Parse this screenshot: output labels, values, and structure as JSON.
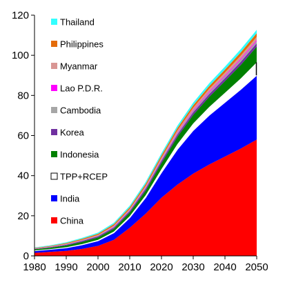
{
  "chart_data": {
    "type": "area",
    "stacked": true,
    "title": "",
    "xlabel": "",
    "ylabel": "",
    "xlim": [
      1980,
      2050
    ],
    "ylim": [
      0,
      120
    ],
    "x_ticks": [
      1980,
      1990,
      2000,
      2010,
      2020,
      2030,
      2040,
      2050
    ],
    "y_ticks": [
      0,
      20,
      40,
      60,
      80,
      100,
      120
    ],
    "grid": false,
    "legend_placement": "top-left",
    "legend_order": [
      "Thailand",
      "Philippines",
      "Myanmar",
      "Lao P.D.R.",
      "Cambodia",
      "Korea",
      "Indonesia",
      "TPP+RCEP",
      "India",
      "China"
    ],
    "x": [
      1980,
      1985,
      1990,
      1995,
      2000,
      2005,
      2010,
      2015,
      2020,
      2025,
      2030,
      2035,
      2040,
      2045,
      2050
    ],
    "series": [
      {
        "name": "China",
        "color": "#ff0000",
        "values": [
          1.5,
          2.0,
          2.5,
          3.5,
          5.0,
          8.0,
          14.0,
          21.0,
          29.0,
          35.5,
          41.0,
          45.5,
          49.5,
          53.5,
          58.0
        ]
      },
      {
        "name": "India",
        "color": "#0000ff",
        "values": [
          1.0,
          1.2,
          1.5,
          2.0,
          2.5,
          3.5,
          5.0,
          8.0,
          12.5,
          17.5,
          21.5,
          24.5,
          27.0,
          29.5,
          32.0
        ]
      },
      {
        "name": "TPP+RCEP",
        "color": "#ffffff",
        "values": [
          0.2,
          0.2,
          0.3,
          0.4,
          0.5,
          0.6,
          0.8,
          1.2,
          1.8,
          2.7,
          3.5,
          4.2,
          4.8,
          5.5,
          6.5
        ]
      },
      {
        "name": "Indonesia",
        "color": "#008000",
        "values": [
          0.6,
          0.7,
          0.9,
          1.1,
          1.2,
          1.4,
          1.8,
          2.3,
          3.0,
          3.6,
          4.3,
          5.0,
          5.8,
          6.7,
          7.8
        ]
      },
      {
        "name": "Korea",
        "color": "#7030a0",
        "values": [
          0.2,
          0.3,
          0.4,
          0.5,
          0.6,
          0.7,
          0.8,
          1.0,
          1.1,
          1.2,
          1.3,
          1.4,
          1.5,
          1.6,
          1.7
        ]
      },
      {
        "name": "Cambodia",
        "color": "#a6a6a6",
        "values": [
          0.1,
          0.1,
          0.1,
          0.2,
          0.2,
          0.3,
          0.3,
          0.4,
          0.5,
          0.6,
          0.7,
          0.8,
          0.9,
          1.0,
          1.0
        ]
      },
      {
        "name": "Lao P.D.R.",
        "color": "#ff00ff",
        "values": [
          0.1,
          0.1,
          0.1,
          0.1,
          0.1,
          0.2,
          0.2,
          0.3,
          0.3,
          0.4,
          0.4,
          0.5,
          0.5,
          0.6,
          0.6
        ]
      },
      {
        "name": "Myanmar",
        "color": "#d99694",
        "values": [
          0.1,
          0.1,
          0.2,
          0.2,
          0.3,
          0.4,
          0.5,
          0.6,
          0.8,
          1.0,
          1.1,
          1.3,
          1.4,
          1.5,
          1.6
        ]
      },
      {
        "name": "Philippines",
        "color": "#e46c0a",
        "values": [
          0.2,
          0.3,
          0.4,
          0.5,
          0.6,
          0.7,
          0.8,
          1.0,
          1.1,
          1.2,
          1.3,
          1.4,
          1.5,
          1.6,
          1.8
        ]
      },
      {
        "name": "Thailand",
        "color": "#33ffff",
        "values": [
          0.2,
          0.3,
          0.4,
          0.5,
          0.6,
          0.7,
          0.8,
          1.0,
          1.1,
          1.2,
          1.3,
          1.4,
          1.5,
          1.6,
          1.7
        ]
      }
    ]
  }
}
